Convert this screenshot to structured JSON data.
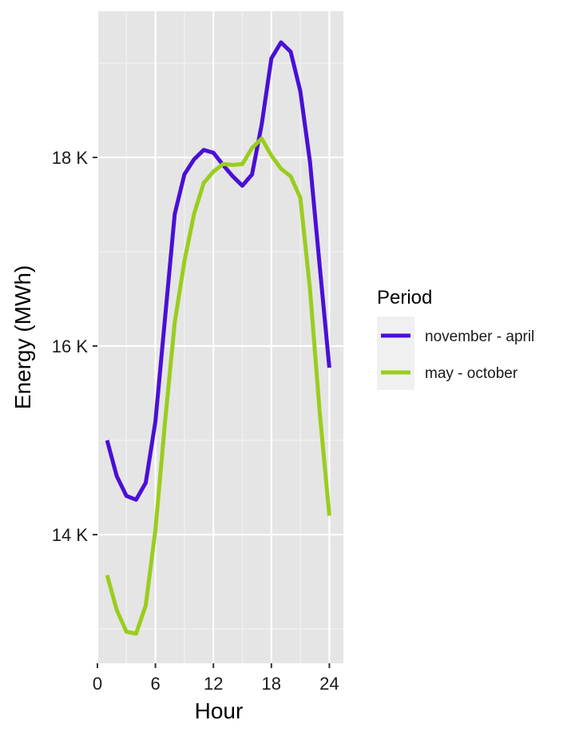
{
  "chart_data": {
    "type": "line",
    "xlabel": "Hour",
    "ylabel": "Energy (MWh)",
    "xlim": [
      0,
      25
    ],
    "ylim": [
      12.65,
      19.55
    ],
    "x_ticks": [
      0,
      6,
      12,
      18,
      24
    ],
    "x_tick_labels": [
      "0",
      "6",
      "12",
      "18",
      "24"
    ],
    "y_ticks": [
      14,
      16,
      18
    ],
    "y_tick_labels": [
      "14 K",
      "16 K",
      "18 K"
    ],
    "grid": true,
    "legend": {
      "title": "Period",
      "position": "right"
    },
    "series": [
      {
        "name": "november - april",
        "color": "#4a0fd6",
        "x": [
          1,
          2,
          3,
          4,
          5,
          6,
          7,
          8,
          9,
          10,
          11,
          12,
          13,
          14,
          15,
          16,
          17,
          18,
          19,
          20,
          21,
          22,
          23,
          24
        ],
        "values": [
          15.0,
          14.62,
          14.41,
          14.37,
          14.55,
          15.2,
          16.3,
          17.4,
          17.82,
          17.98,
          18.08,
          18.05,
          17.92,
          17.8,
          17.7,
          17.82,
          18.35,
          19.05,
          19.22,
          19.12,
          18.7,
          17.95,
          16.85,
          15.77
        ]
      },
      {
        "name": "may - october",
        "color": "#9acd1e",
        "x": [
          1,
          2,
          3,
          4,
          5,
          6,
          7,
          8,
          9,
          10,
          11,
          12,
          13,
          14,
          15,
          16,
          17,
          18,
          19,
          20,
          21,
          22,
          23,
          24
        ],
        "values": [
          13.57,
          13.2,
          12.97,
          12.95,
          13.25,
          14.05,
          15.2,
          16.25,
          16.9,
          17.4,
          17.73,
          17.85,
          17.93,
          17.92,
          17.93,
          18.1,
          18.2,
          18.02,
          17.88,
          17.8,
          17.57,
          16.6,
          15.3,
          14.2
        ]
      }
    ]
  }
}
